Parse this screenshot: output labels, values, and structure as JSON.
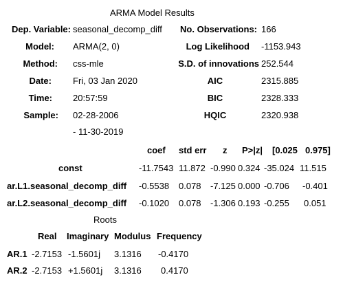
{
  "title": "ARMA Model Results",
  "info": {
    "dep_variable": {
      "label": "Dep. Variable:",
      "value": "seasonal_decomp_diff"
    },
    "model": {
      "label": "Model:",
      "value": "ARMA(2, 0)"
    },
    "method": {
      "label": "Method:",
      "value": "css-mle"
    },
    "date": {
      "label": "Date:",
      "value": "Fri, 03 Jan 2020"
    },
    "time": {
      "label": "Time:",
      "value": "20:57:59"
    },
    "sample": {
      "label": "Sample:",
      "value": "02-28-2006",
      "value2": "- 11-30-2019"
    },
    "n_obs": {
      "label": "No. Observations:",
      "value": "166"
    },
    "log_likelihood": {
      "label": "Log Likelihood",
      "value": "-1153.943"
    },
    "sd_innov": {
      "label": "S.D. of innovations",
      "value": "252.544"
    },
    "aic": {
      "label": "AIC",
      "value": "2315.885"
    },
    "bic": {
      "label": "BIC",
      "value": "2328.333"
    },
    "hqic": {
      "label": "HQIC",
      "value": "2320.938"
    }
  },
  "coef_table": {
    "headers": [
      "coef",
      "std err",
      "z",
      "P>|z|",
      "[0.025",
      "0.975]"
    ],
    "rows": [
      {
        "name": "const",
        "values": [
          "-11.7543",
          "11.872",
          "-0.990",
          "0.324",
          "-35.024",
          "11.515"
        ]
      },
      {
        "name": "ar.L1.seasonal_decomp_diff",
        "values": [
          "-0.5538",
          "0.078",
          "-7.125",
          "0.000",
          "-0.706",
          "-0.401"
        ]
      },
      {
        "name": "ar.L2.seasonal_decomp_diff",
        "values": [
          "-0.1020",
          "0.078",
          "-1.306",
          "0.193",
          "-0.255",
          "0.051"
        ]
      }
    ]
  },
  "roots": {
    "title": "Roots",
    "headers": [
      "Real",
      "Imaginary",
      "Modulus",
      "Frequency"
    ],
    "rows": [
      {
        "name": "AR.1",
        "values": [
          "-2.7153",
          "-1.5601j",
          "3.1316",
          "-0.4170"
        ]
      },
      {
        "name": "AR.2",
        "values": [
          "-2.7153",
          "+1.5601j",
          "3.1316",
          "0.4170"
        ]
      }
    ]
  }
}
